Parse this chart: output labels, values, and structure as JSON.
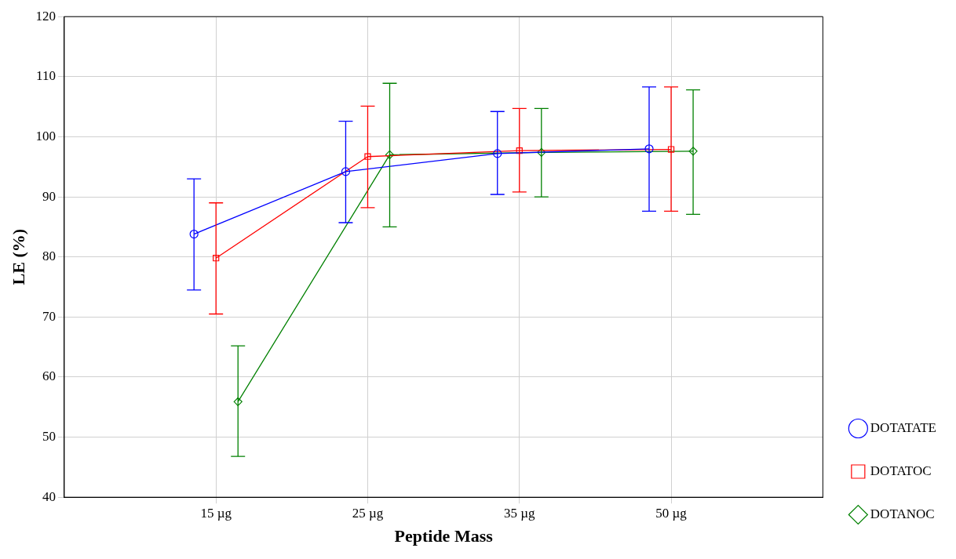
{
  "chart_data": {
    "type": "line",
    "xlabel": "Peptide Mass",
    "ylabel": "LE (%)",
    "categories": [
      "15 µg",
      "25 µg",
      "35 µg",
      "50 µg"
    ],
    "ylim": [
      40,
      120
    ],
    "yticks": [
      40,
      50,
      60,
      70,
      80,
      90,
      100,
      110,
      120
    ],
    "grid": true,
    "legend": "right",
    "series": [
      {
        "name": "DOTATATE",
        "color": "#0000ff",
        "marker": "circle",
        "values": [
          83.8,
          94.2,
          97.2,
          98
        ],
        "errors": [
          [
            74.5,
            93
          ],
          [
            85.7,
            102.6
          ],
          [
            90.4,
            104.2
          ],
          [
            87.6,
            108.3
          ]
        ]
      },
      {
        "name": "DOTATOC",
        "color": "#ff0000",
        "marker": "square",
        "values": [
          79.8,
          96.7,
          97.7,
          97.9
        ],
        "errors": [
          [
            70.5,
            89
          ],
          [
            88.2,
            105.1
          ],
          [
            90.8,
            104.7
          ],
          [
            87.6,
            108.3
          ]
        ]
      },
      {
        "name": "DOTANOC",
        "color": "#008000",
        "marker": "diamond",
        "values": [
          55.9,
          97,
          97.4,
          97.6
        ],
        "errors": [
          [
            46.8,
            65.2
          ],
          [
            85,
            108.9
          ],
          [
            90,
            104.7
          ],
          [
            87.1,
            107.8
          ]
        ]
      }
    ]
  }
}
